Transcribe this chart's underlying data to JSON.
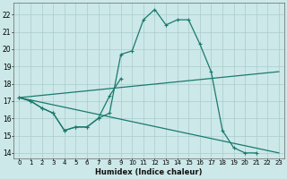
{
  "xlabel": "Humidex (Indice chaleur)",
  "bg_color": "#cce8e8",
  "grid_color": "#aacccc",
  "line_color": "#1a7a6e",
  "xlim": [
    -0.5,
    23.5
  ],
  "ylim": [
    13.7,
    22.7
  ],
  "xticks": [
    0,
    1,
    2,
    3,
    4,
    5,
    6,
    7,
    8,
    9,
    10,
    11,
    12,
    13,
    14,
    15,
    16,
    17,
    18,
    19,
    20,
    21,
    22,
    23
  ],
  "yticks": [
    14,
    15,
    16,
    17,
    18,
    19,
    20,
    21,
    22
  ],
  "line1_x": [
    0,
    1,
    2,
    3,
    4,
    5,
    6,
    7,
    8,
    9,
    10,
    11,
    12,
    13,
    14,
    15,
    16,
    17,
    18,
    19,
    20,
    21
  ],
  "line1_y": [
    17.2,
    17.0,
    16.6,
    16.3,
    15.3,
    15.5,
    15.5,
    16.0,
    16.3,
    19.7,
    19.9,
    21.7,
    22.3,
    21.4,
    21.7,
    21.7,
    20.3,
    18.7,
    15.3,
    14.3,
    14.0,
    14.0
  ],
  "line2_x": [
    0,
    1,
    2,
    3,
    4,
    5,
    6,
    7,
    8,
    9
  ],
  "line2_y": [
    17.2,
    17.0,
    16.6,
    16.3,
    15.3,
    15.5,
    15.5,
    16.0,
    17.3,
    18.3
  ],
  "line3_x": [
    0,
    23
  ],
  "line3_y": [
    17.2,
    18.7
  ],
  "line4_x": [
    0,
    23
  ],
  "line4_y": [
    17.2,
    14.0
  ]
}
